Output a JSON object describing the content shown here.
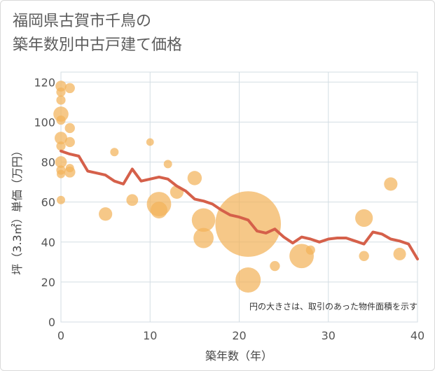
{
  "chart_data": {
    "type": "scatter",
    "title_line1": "福岡県古賀市千鳥の",
    "title_line2": "築年数別中古戸建て価格",
    "xlabel": "築年数（年）",
    "ylabel": "坪（3.3㎡）単価（万円）",
    "xlim": [
      0,
      40
    ],
    "ylim": [
      0,
      125
    ],
    "xticks": [
      0,
      10,
      20,
      30,
      40
    ],
    "yticks": [
      0,
      20,
      40,
      60,
      80,
      100,
      120
    ],
    "note": "円の大きさは、取引のあった物件面積を示す",
    "colors": {
      "bubble": "#f2b35a",
      "line": "#d5604a",
      "grid": "#d3dde3"
    },
    "bubbles": [
      {
        "x": 0,
        "y": 118,
        "size": 1.3
      },
      {
        "x": 0,
        "y": 115,
        "size": 1.1
      },
      {
        "x": 0,
        "y": 111,
        "size": 1.1
      },
      {
        "x": 0,
        "y": 104,
        "size": 1.8
      },
      {
        "x": 0,
        "y": 101,
        "size": 1.1
      },
      {
        "x": 0,
        "y": 92,
        "size": 1.5
      },
      {
        "x": 0,
        "y": 88,
        "size": 1.1
      },
      {
        "x": 0,
        "y": 80,
        "size": 1.4
      },
      {
        "x": 0,
        "y": 76,
        "size": 1.1
      },
      {
        "x": 0,
        "y": 74,
        "size": 1.0
      },
      {
        "x": 0,
        "y": 61,
        "size": 1.0
      },
      {
        "x": 1,
        "y": 117,
        "size": 1.2
      },
      {
        "x": 1,
        "y": 97,
        "size": 1.2
      },
      {
        "x": 1,
        "y": 90,
        "size": 1.2
      },
      {
        "x": 1,
        "y": 77,
        "size": 1.0
      },
      {
        "x": 1,
        "y": 75,
        "size": 1.3
      },
      {
        "x": 5,
        "y": 54,
        "size": 1.6
      },
      {
        "x": 6,
        "y": 85,
        "size": 1.0
      },
      {
        "x": 8,
        "y": 61,
        "size": 1.4
      },
      {
        "x": 10,
        "y": 90,
        "size": 0.9
      },
      {
        "x": 11,
        "y": 59,
        "size": 2.9
      },
      {
        "x": 11,
        "y": 56,
        "size": 2.0
      },
      {
        "x": 12,
        "y": 79,
        "size": 1.0
      },
      {
        "x": 13,
        "y": 65,
        "size": 1.6
      },
      {
        "x": 15,
        "y": 72,
        "size": 1.7
      },
      {
        "x": 16,
        "y": 51,
        "size": 2.8
      },
      {
        "x": 16,
        "y": 42,
        "size": 2.4
      },
      {
        "x": 21,
        "y": 49,
        "size": 7.8
      },
      {
        "x": 21,
        "y": 21,
        "size": 3.0
      },
      {
        "x": 24,
        "y": 28,
        "size": 1.2
      },
      {
        "x": 27,
        "y": 33,
        "size": 2.9
      },
      {
        "x": 28,
        "y": 36,
        "size": 1.1
      },
      {
        "x": 34,
        "y": 52,
        "size": 2.1
      },
      {
        "x": 34,
        "y": 33,
        "size": 1.2
      },
      {
        "x": 37,
        "y": 69,
        "size": 1.6
      },
      {
        "x": 38,
        "y": 34,
        "size": 1.5
      }
    ],
    "trend_line": [
      {
        "x": 0,
        "y": 85.5
      },
      {
        "x": 1,
        "y": 84
      },
      {
        "x": 2,
        "y": 83
      },
      {
        "x": 3,
        "y": 75.5
      },
      {
        "x": 4,
        "y": 74.5
      },
      {
        "x": 5,
        "y": 73.5
      },
      {
        "x": 6,
        "y": 70.5
      },
      {
        "x": 7,
        "y": 69
      },
      {
        "x": 8,
        "y": 76.5
      },
      {
        "x": 9,
        "y": 70.5
      },
      {
        "x": 10,
        "y": 71.5
      },
      {
        "x": 11,
        "y": 72.5
      },
      {
        "x": 12,
        "y": 71.5
      },
      {
        "x": 13,
        "y": 68
      },
      {
        "x": 14,
        "y": 65.5
      },
      {
        "x": 15,
        "y": 61.5
      },
      {
        "x": 16,
        "y": 60.5
      },
      {
        "x": 17,
        "y": 59
      },
      {
        "x": 18,
        "y": 56
      },
      {
        "x": 19,
        "y": 53.5
      },
      {
        "x": 20,
        "y": 52.5
      },
      {
        "x": 21,
        "y": 51
      },
      {
        "x": 22,
        "y": 45.5
      },
      {
        "x": 23,
        "y": 44.5
      },
      {
        "x": 24,
        "y": 46.5
      },
      {
        "x": 25,
        "y": 42.5
      },
      {
        "x": 26,
        "y": 39.5
      },
      {
        "x": 27,
        "y": 42.5
      },
      {
        "x": 28,
        "y": 41.5
      },
      {
        "x": 29,
        "y": 40
      },
      {
        "x": 30,
        "y": 41.5
      },
      {
        "x": 31,
        "y": 42
      },
      {
        "x": 32,
        "y": 42
      },
      {
        "x": 33,
        "y": 40.5
      },
      {
        "x": 34,
        "y": 39
      },
      {
        "x": 35,
        "y": 45
      },
      {
        "x": 36,
        "y": 44
      },
      {
        "x": 37,
        "y": 41.5
      },
      {
        "x": 38,
        "y": 40.5
      },
      {
        "x": 39,
        "y": 39
      },
      {
        "x": 40,
        "y": 31.5
      }
    ]
  }
}
